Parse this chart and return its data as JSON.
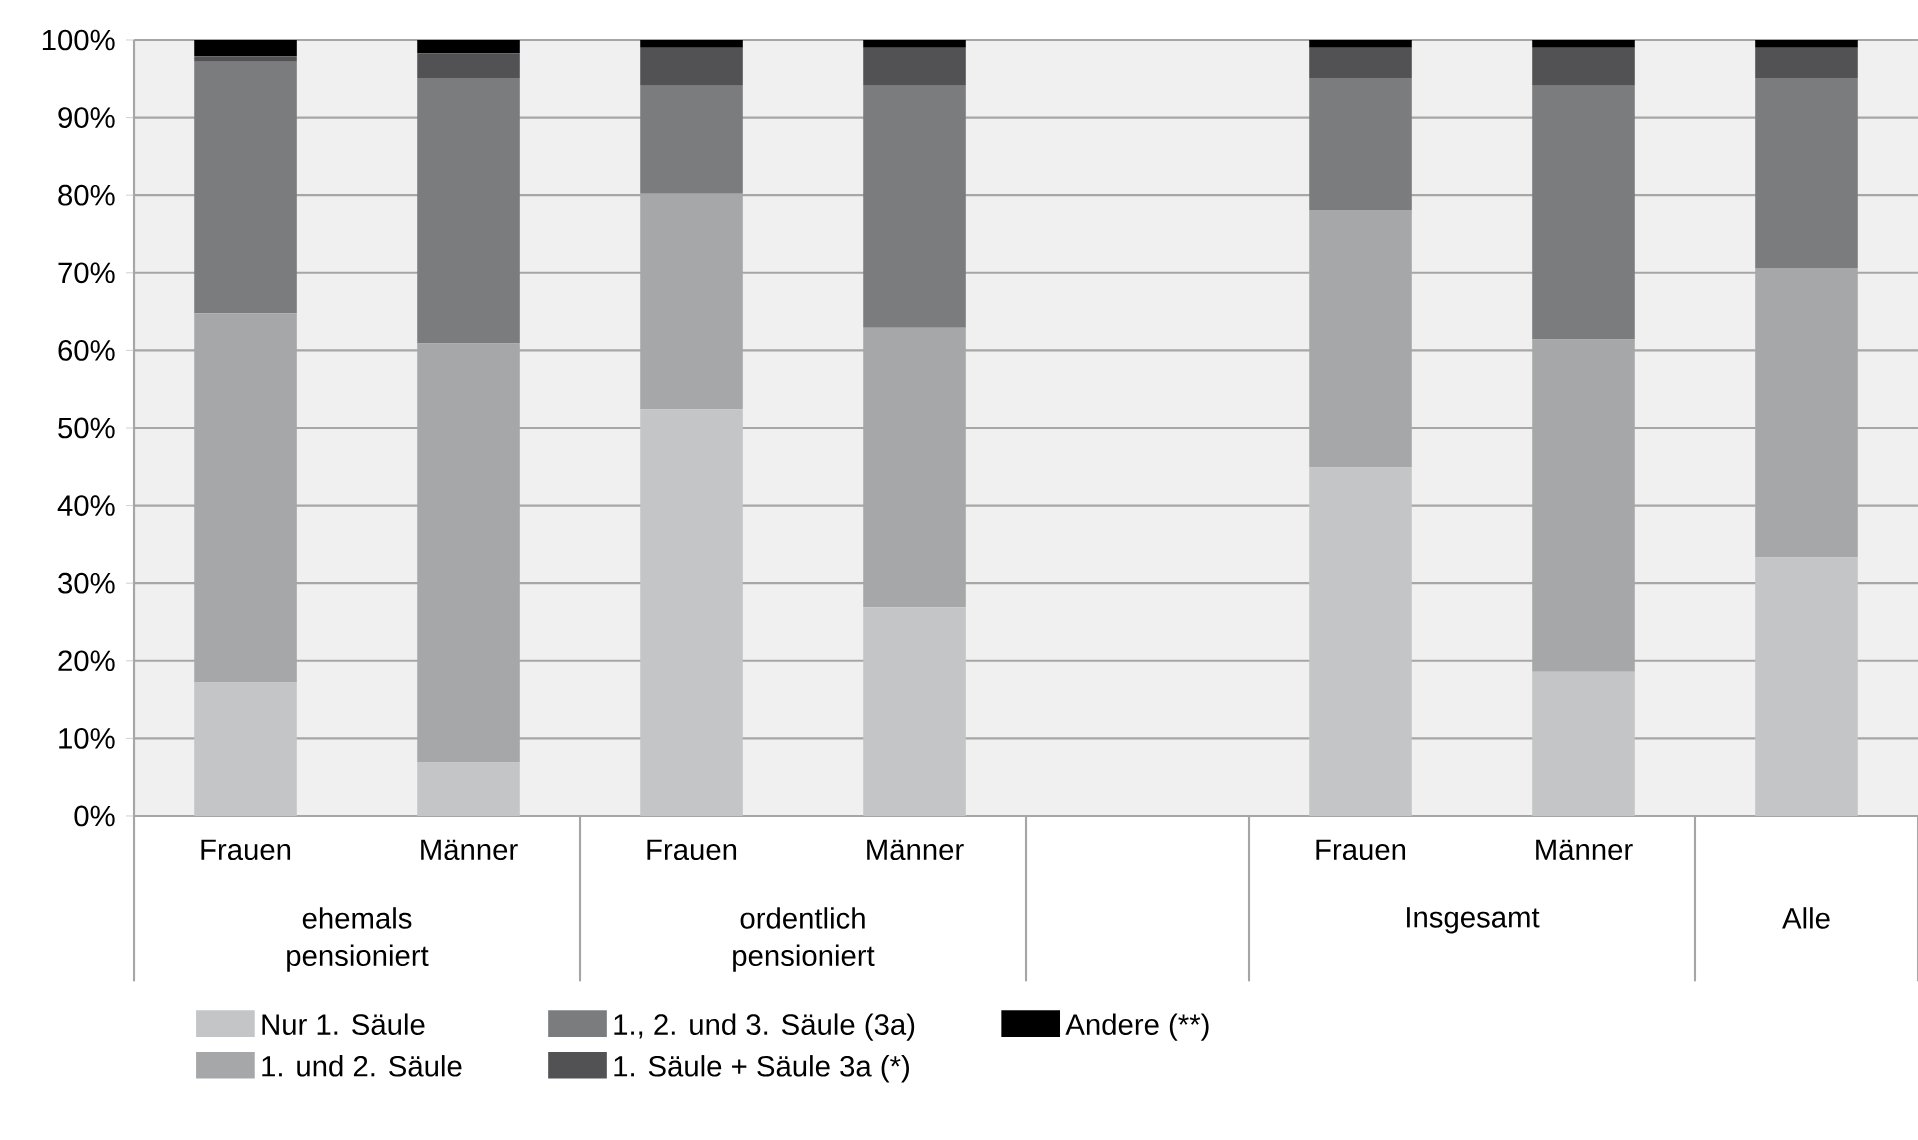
{
  "chart_data": {
    "type": "bar",
    "stacked": true,
    "categories": [
      "Frauen",
      "Männer",
      "Frauen",
      "Männer",
      null,
      "Frauen",
      "Männer",
      null
    ],
    "series": [
      {
        "name": "Nur 1. Säule",
        "color": "#c4c5c6",
        "values": [
          17.2,
          6.9,
          52.4,
          26.9,
          null,
          44.9,
          18.6,
          33.3
        ]
      },
      {
        "name": "1. und 2. Säule",
        "color": "#a6a7a8",
        "values": [
          47.6,
          54.0,
          27.8,
          36.0,
          null,
          33.2,
          42.8,
          37.3
        ]
      },
      {
        "name": "1., 2. und 3. Säule (3a)",
        "color": "#7b7c7e",
        "values": [
          32.4,
          34.2,
          13.9,
          31.2,
          null,
          17.0,
          32.7,
          24.5
        ]
      },
      {
        "name": "1. Säule + Säule 3a (*)",
        "color": "#525254",
        "values": [
          0.7,
          3.2,
          4.9,
          4.9,
          null,
          3.9,
          4.9,
          3.9
        ]
      },
      {
        "name": "Andere (**)",
        "color": "#000000",
        "values": [
          2.1,
          1.7,
          1.0,
          1.0,
          null,
          1.0,
          1.0,
          1.0
        ]
      }
    ],
    "ylim": [
      0,
      100
    ],
    "yticks": [
      {
        "value": 0,
        "label": "0%"
      },
      {
        "value": 10,
        "label": "10%"
      },
      {
        "value": 20,
        "label": "20%"
      },
      {
        "value": 30,
        "label": "30%"
      },
      {
        "value": 40,
        "label": "40%"
      },
      {
        "value": 50,
        "label": "50%"
      },
      {
        "value": 60,
        "label": "60%"
      },
      {
        "value": 70,
        "label": "70%"
      },
      {
        "value": 80,
        "label": "80%"
      },
      {
        "value": 90,
        "label": "90%"
      },
      {
        "value": 100,
        "label": "100%"
      }
    ],
    "grid": "y",
    "legend": "bottom left",
    "annotations": [
      "ehemals pensioniert",
      "ordentlich pensioniert",
      "Insgesamt",
      "Alle"
    ]
  }
}
